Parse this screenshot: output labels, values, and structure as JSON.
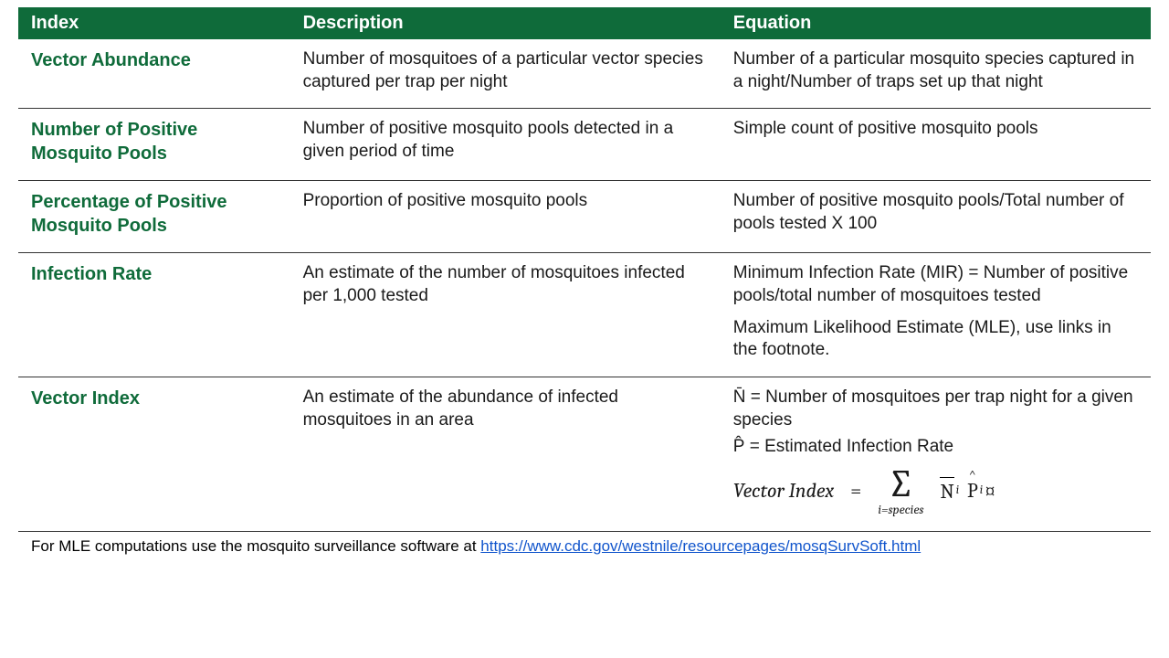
{
  "colors": {
    "header_bg": "#0f6b3a",
    "header_fg": "#ffffff",
    "index_fg": "#0f6b3a",
    "body_fg": "#1a1a1a",
    "border": "#333333",
    "link": "#1155cc",
    "page_bg": "#ffffff"
  },
  "typography": {
    "body_font": "Arial, Helvetica, sans-serif",
    "formula_font": "Cambria, Times New Roman, serif",
    "header_fontsize_pt": 15,
    "body_fontsize_pt": 14,
    "index_fontsize_pt": 15,
    "formula_fontsize_pt": 16
  },
  "table": {
    "type": "table",
    "headers": {
      "index": "Index",
      "description": "Description",
      "equation": "Equation"
    },
    "column_widths_pct": [
      24,
      38,
      38
    ],
    "rows": [
      {
        "index": "Vector Abundance",
        "description": "Number of mosquitoes of a particular vector species captured per trap per night",
        "equation": [
          "Number of a particular mosquito species captured in a night/Number of traps set up that night"
        ]
      },
      {
        "index": "Number of Positive Mosquito Pools",
        "description": "Number of positive mosquito pools detected in a given period of time",
        "equation": [
          "Simple count of positive mosquito pools"
        ]
      },
      {
        "index": "Percentage of Positive Mosquito Pools",
        "description": "Proportion of positive mosquito pools",
        "equation": [
          "Number of positive mosquito pools/Total number of pools tested X 100"
        ]
      },
      {
        "index": "Infection Rate",
        "description": "An estimate of the number of mosquitoes infected per 1,000 tested",
        "equation": [
          "Minimum Infection Rate (MIR) = Number of positive pools/total number of mosquitoes tested",
          "Maximum Likelihood Estimate (MLE), use links in the footnote."
        ]
      },
      {
        "index": "Vector Index",
        "description": "An estimate of the abundance of infected mosquitoes in an area",
        "equation_vars": {
          "n_bar": "N̄ = Number of mosquitoes per trap night for a given species",
          "p_hat": "P̂ = Estimated Infection Rate"
        },
        "formula": {
          "lhs": "Vector Index",
          "sum_sub": "i=species",
          "term1_sym": "N",
          "term2_sym": "P",
          "sub_idx": "i",
          "trailing": "¤"
        }
      }
    ]
  },
  "footnote": {
    "prefix": "For MLE computations use the mosquito surveillance software at ",
    "url": "https://www.cdc.gov/westnile/resourcepages/mosqSurvSoft.html"
  }
}
